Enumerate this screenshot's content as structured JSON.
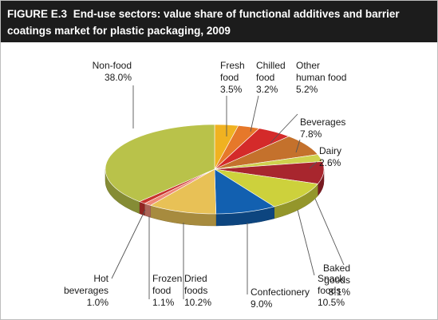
{
  "header": {
    "figure": "FIGURE E.3",
    "title": "End-use sectors: value share of functional additives and barrier coatings market for plastic packaging, 2009"
  },
  "chart_data": {
    "type": "pie",
    "title": "FIGURE E.3 End-use sectors: value share of functional additives and barrier coatings market for plastic packaging, 2009",
    "unit": "%",
    "slices": [
      {
        "label": "Fresh food",
        "label_lines": [
          "Fresh",
          "food",
          "3.5%"
        ],
        "value": 3.5,
        "color": "#f0b221"
      },
      {
        "label": "Chilled food",
        "label_lines": [
          "Chilled",
          "food",
          "3.2%"
        ],
        "value": 3.2,
        "color": "#e6782a"
      },
      {
        "label": "Other human food",
        "label_lines": [
          "Other",
          "human food",
          "5.2%"
        ],
        "value": 5.2,
        "color": "#d42a2a"
      },
      {
        "label": "Beverages",
        "label_lines": [
          "Beverages",
          "7.8%"
        ],
        "value": 7.8,
        "color": "#c4712c"
      },
      {
        "label": "Dairy",
        "label_lines": [
          "Dairy",
          "2.6%"
        ],
        "value": 2.6,
        "color": "#cfd24e"
      },
      {
        "label": "Baked goods",
        "label_lines": [
          "Baked",
          "goods",
          "8.1%"
        ],
        "value": 8.1,
        "color": "#a8262e"
      },
      {
        "label": "Snack foods",
        "label_lines": [
          "Snack",
          "foods",
          "10.5%"
        ],
        "value": 10.5,
        "color": "#cdd13c"
      },
      {
        "label": "Confectionery",
        "label_lines": [
          "Confectionery",
          "9.0%"
        ],
        "value": 9.0,
        "color": "#1260b0"
      },
      {
        "label": "Dried foods",
        "label_lines": [
          "Dried",
          "foods",
          "10.2%"
        ],
        "value": 10.2,
        "color": "#e8c156"
      },
      {
        "label": "Frozen food",
        "label_lines": [
          "Frozen",
          "food",
          "1.1%"
        ],
        "value": 1.1,
        "color": "#ee8a78"
      },
      {
        "label": "Hot beverages",
        "label_lines": [
          "Hot",
          "beverages",
          "1.0%"
        ],
        "value": 1.0,
        "color": "#c9342f"
      },
      {
        "label": "Non-food",
        "label_lines": [
          "Non-food",
          "38.0%"
        ],
        "value": 38.0,
        "color": "#b9c24a"
      }
    ]
  }
}
